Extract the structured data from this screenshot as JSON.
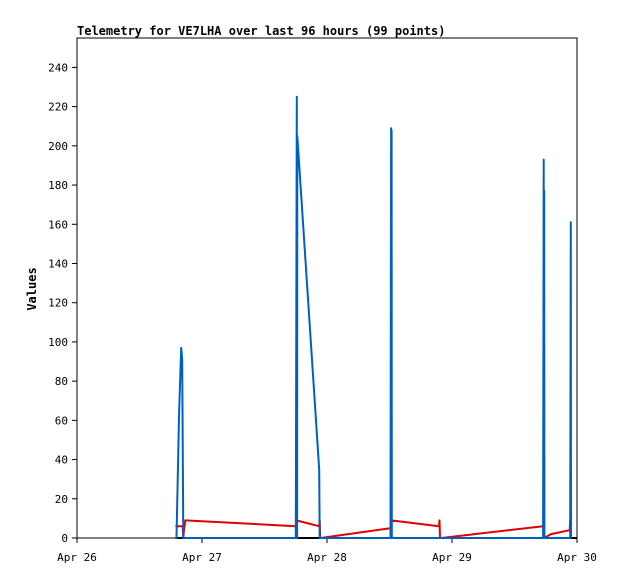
{
  "chart_data": {
    "type": "line",
    "title": "Telemetry for VE7LHA over last 96 hours (99 points)",
    "ylabel": "Values",
    "xlabel": "",
    "ylim": [
      0,
      255
    ],
    "xlim": [
      0,
      96
    ],
    "y_ticks": [
      0,
      20,
      40,
      60,
      80,
      100,
      120,
      140,
      160,
      180,
      200,
      220,
      240
    ],
    "x_ticks": [
      {
        "x": 0,
        "label": "Apr 26"
      },
      {
        "x": 24,
        "label": "Apr 27"
      },
      {
        "x": 48,
        "label": "Apr 28"
      },
      {
        "x": 72,
        "label": "Apr 29"
      },
      {
        "x": 96,
        "label": "Apr 30"
      }
    ],
    "grid": false,
    "series": [
      {
        "color": "#000000",
        "points": [
          [
            18.9,
            0
          ],
          [
            96,
            0
          ]
        ]
      },
      {
        "color": "#e00000",
        "points": [
          [
            18.9,
            6
          ],
          [
            20.3,
            6
          ],
          [
            20.4,
            0
          ],
          [
            20.5,
            3
          ],
          [
            20.8,
            9
          ],
          [
            42.0,
            6
          ],
          [
            42.1,
            9
          ],
          [
            46.5,
            6
          ],
          [
            46.6,
            9
          ],
          [
            46.7,
            0
          ],
          [
            46.8,
            0
          ],
          [
            60.2,
            5
          ],
          [
            60.3,
            9
          ],
          [
            69.5,
            6
          ],
          [
            69.6,
            9
          ],
          [
            69.7,
            0
          ],
          [
            70.0,
            0
          ],
          [
            89.5,
            6
          ],
          [
            89.6,
            8
          ],
          [
            89.7,
            0
          ],
          [
            91.0,
            2
          ],
          [
            94.6,
            4
          ],
          [
            94.7,
            9
          ],
          [
            94.8,
            0
          ]
        ]
      },
      {
        "color": "#0060c0",
        "points": [
          [
            18.9,
            0
          ],
          [
            19.1,
            0
          ],
          [
            19.6,
            64
          ],
          [
            20.0,
            97
          ],
          [
            20.2,
            91
          ],
          [
            20.4,
            0
          ],
          [
            42.0,
            0
          ],
          [
            42.2,
            225
          ],
          [
            42.25,
            0
          ],
          [
            42.3,
            205
          ],
          [
            46.5,
            35
          ],
          [
            46.6,
            0
          ],
          [
            60.2,
            0
          ],
          [
            60.3,
            209
          ],
          [
            60.35,
            0
          ],
          [
            60.4,
            208
          ],
          [
            60.45,
            0
          ],
          [
            89.5,
            0
          ],
          [
            89.6,
            193
          ],
          [
            89.65,
            0
          ],
          [
            89.7,
            177
          ],
          [
            89.75,
            0
          ],
          [
            94.7,
            0
          ],
          [
            94.8,
            161
          ],
          [
            94.85,
            0
          ]
        ]
      }
    ]
  }
}
